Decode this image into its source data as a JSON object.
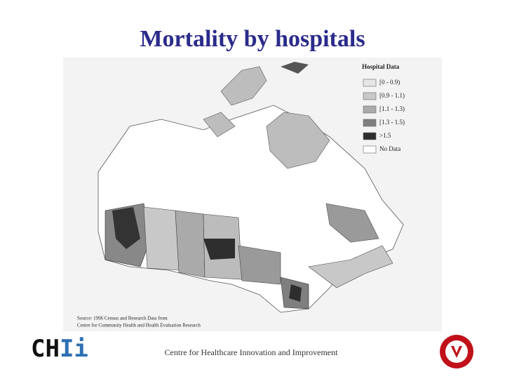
{
  "title": "Mortality by hospitals",
  "map": {
    "legend_title": "Hospital Data",
    "legend": [
      {
        "label": "[0 - 0.9)",
        "color": "#e6e6e6"
      },
      {
        "label": "[0.9 - 1.1)",
        "color": "#c8c8c8"
      },
      {
        "label": "[1.1 - 1.3)",
        "color": "#aaaaaa"
      },
      {
        "label": "[1.3 - 1.5)",
        "color": "#7f7f7f"
      },
      {
        "label": ">1.5",
        "color": "#2e2e2e"
      },
      {
        "label": "No Data",
        "color": "#ffffff"
      }
    ],
    "source": [
      "Source: 1996 Census and Research Data from",
      "Centre for Community Health and Health Evaluation Research"
    ]
  },
  "footer": {
    "logo_parts": [
      "CH",
      "Ii"
    ],
    "text": "Centre for Healthcare Innovation and Improvement"
  }
}
